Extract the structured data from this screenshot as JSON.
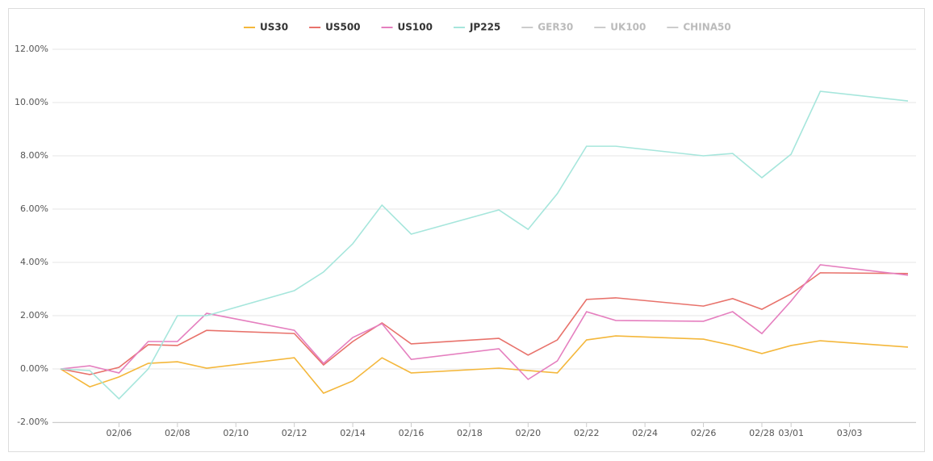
{
  "chart_data": {
    "type": "line",
    "x": [
      "02/04",
      "02/05",
      "02/06",
      "02/07",
      "02/08",
      "02/09",
      "02/12",
      "02/13",
      "02/14",
      "02/15",
      "02/16",
      "02/19",
      "02/20",
      "02/21",
      "02/22",
      "02/23",
      "02/26",
      "02/27",
      "02/28",
      "03/01",
      "03/02",
      "03/05"
    ],
    "series": [
      {
        "name": "US30",
        "color": "#f4b73b",
        "values": [
          0,
          -0.67,
          -0.3,
          0.21,
          0.27,
          0.03,
          0.42,
          -0.91,
          -0.45,
          0.42,
          -0.15,
          0.03,
          -0.06,
          -0.15,
          1.09,
          1.24,
          1.12,
          0.88,
          0.58,
          0.88,
          1.06,
          0.82
        ]
      },
      {
        "name": "US500",
        "color": "#e8726b",
        "values": [
          0,
          -0.21,
          0.06,
          0.91,
          0.88,
          1.45,
          1.33,
          0.15,
          1.03,
          1.73,
          0.94,
          1.15,
          0.52,
          1.09,
          2.61,
          2.67,
          2.36,
          2.64,
          2.24,
          2.82,
          3.61,
          3.58
        ]
      },
      {
        "name": "US100",
        "color": "#e57fbf",
        "values": [
          0,
          0.12,
          -0.15,
          1.03,
          1.03,
          2.09,
          1.45,
          0.21,
          1.18,
          1.7,
          0.36,
          0.76,
          -0.39,
          0.3,
          2.15,
          1.82,
          1.79,
          2.15,
          1.33,
          2.55,
          3.91,
          3.52
        ]
      },
      {
        "name": "JP225",
        "color": "#a6e6dc",
        "values": [
          0,
          -0.06,
          -1.12,
          0,
          2.0,
          2.0,
          2.94,
          3.64,
          4.7,
          6.15,
          5.06,
          5.97,
          5.24,
          6.58,
          8.36,
          8.36,
          8.0,
          8.09,
          7.18,
          8.06,
          10.42,
          10.06
        ]
      }
    ],
    "hidden_legend": [
      "GER30",
      "UK100",
      "CHINA50"
    ],
    "xlim": [
      "02/04",
      "03/05"
    ],
    "xticks": [
      "02/06",
      "02/08",
      "02/10",
      "02/12",
      "02/14",
      "02/16",
      "02/18",
      "02/20",
      "02/22",
      "02/24",
      "02/26",
      "02/28",
      "03/01",
      "03/03"
    ],
    "ylim": [
      -2,
      12
    ],
    "yticks": [
      {
        "value": -2,
        "label": "-2.00%"
      },
      {
        "value": 0,
        "label": "0.00%"
      },
      {
        "value": 2,
        "label": "2.00%"
      },
      {
        "value": 4,
        "label": "4.00%"
      },
      {
        "value": 6,
        "label": "6.00%"
      },
      {
        "value": 8,
        "label": "8.00%"
      },
      {
        "value": 10,
        "label": "10.00%"
      },
      {
        "value": 12,
        "label": "12.00%"
      }
    ],
    "grid": true
  }
}
